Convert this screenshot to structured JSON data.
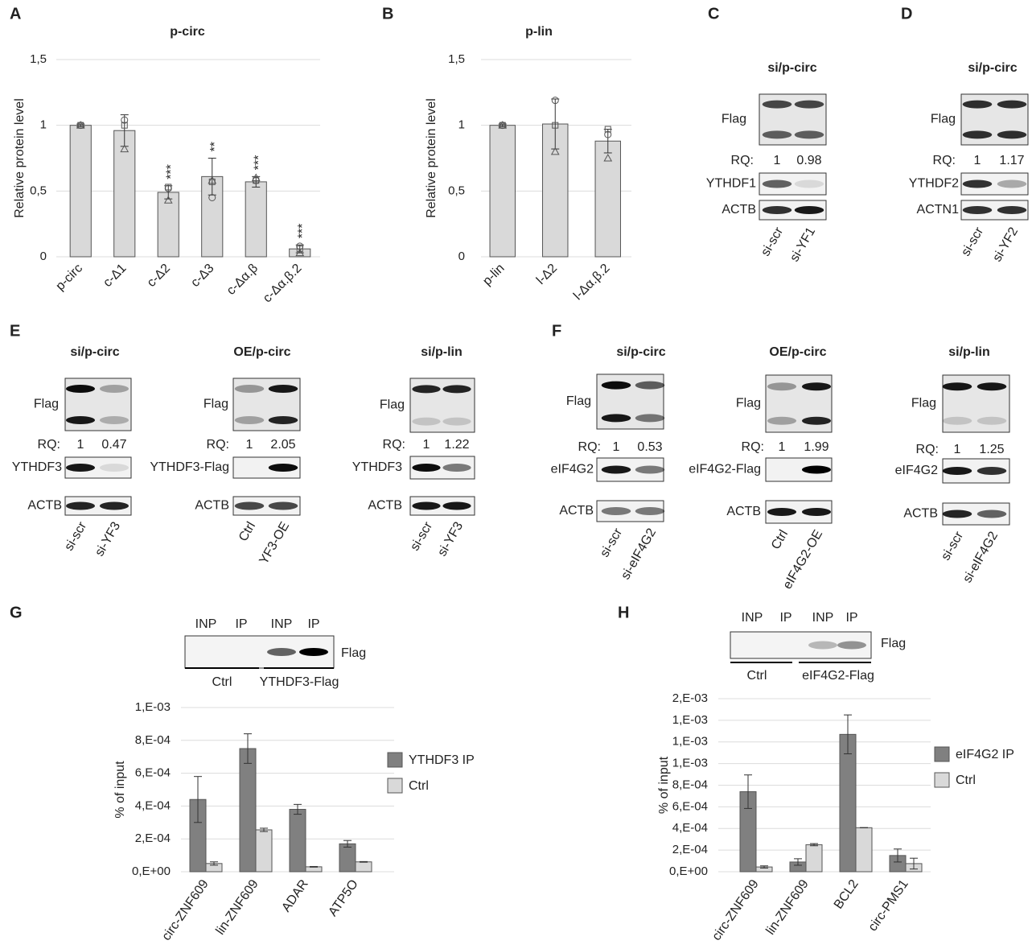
{
  "panel_labels": [
    "A",
    "B",
    "C",
    "D",
    "E",
    "F",
    "G",
    "H"
  ],
  "chart_data": [
    {
      "type": "bar",
      "title": "p-circ",
      "y_label": "Relative protein level",
      "categories": [
        "p-circ",
        "c-Δ1",
        "c-Δ2",
        "c-Δ3",
        "c-Δα.β",
        "c-Δα.β.2"
      ],
      "values": [
        1,
        0.96,
        0.49,
        0.61,
        0.57,
        0.06
      ],
      "errors": [
        0.01,
        0.12,
        0.05,
        0.14,
        0.04,
        0.03
      ],
      "points": [
        [
          1,
          1,
          1
        ],
        [
          1.04,
          1.0,
          0.82
        ],
        [
          0.52,
          0.53,
          0.43
        ],
        [
          0.45,
          0.57,
          0.58
        ],
        [
          0.58,
          0.58,
          0.6
        ],
        [
          0.08,
          0.06,
          0.03
        ]
      ],
      "significance": [
        null,
        null,
        "***",
        "**",
        "***",
        "***"
      ],
      "color": "#d9d9d9",
      "ylim": [
        0,
        1.5
      ],
      "yticks": [
        0,
        {
          "value": 0.5,
          "label": "0,5"
        },
        1,
        {
          "value": 1.5,
          "label": "1,5"
        }
      ],
      "grid": true
    },
    {
      "type": "bar",
      "title": "p-lin",
      "y_label": "Relative protein level",
      "categories": [
        "p-lin",
        "l-Δ2",
        "l-Δα.β.2"
      ],
      "values": [
        1,
        1.01,
        0.88
      ],
      "errors": [
        0.01,
        0.19,
        0.09
      ],
      "points": [
        [
          1,
          1,
          1
        ],
        [
          1.19,
          1.0,
          0.8
        ],
        [
          0.93,
          0.97,
          0.75
        ]
      ],
      "color": "#d9d9d9",
      "ylim": [
        0,
        1.5
      ],
      "yticks": [
        0,
        {
          "value": 0.5,
          "label": "0,5"
        },
        1,
        {
          "value": 1.5,
          "label": "1,5"
        }
      ],
      "grid": true
    },
    {
      "type": "grouped_bar",
      "y_label": "% of input",
      "categories": [
        "circ-ZNF609",
        "lin-ZNF609",
        "ADAR",
        "ATP5O"
      ],
      "series": [
        {
          "name": "YTHDF3 IP",
          "color": "#808080",
          "values": [
            0.00044,
            0.00075,
            0.00038,
            0.00017
          ],
          "errors": [
            0.00014,
            9e-05,
            3e-05,
            2e-05
          ]
        },
        {
          "name": "Ctrl",
          "color": "#d9d9d9",
          "values": [
            5e-05,
            0.000255,
            3e-05,
            6e-05
          ],
          "errors": [
            1e-05,
            1e-05,
            2e-06,
            2e-06
          ]
        }
      ],
      "ylim": [
        0,
        0.001
      ],
      "yticks": [
        {
          "value": 0,
          "label": "0,E+00"
        },
        {
          "value": 0.0002,
          "label": "2,E-04"
        },
        {
          "value": 0.0004,
          "label": "4,E-04"
        },
        {
          "value": 0.0006,
          "label": "6,E-04"
        },
        {
          "value": 0.0008,
          "label": "8,E-04"
        },
        {
          "value": 0.001,
          "label": "1,E-03"
        }
      ],
      "grid": true,
      "legend": "right"
    },
    {
      "type": "grouped_bar",
      "y_label": "% of input",
      "categories": [
        "circ-ZNF609",
        "lin-ZNF609",
        "BCL2",
        "circ-PMS1"
      ],
      "series": [
        {
          "name": "eIF4G2 IP",
          "color": "#808080",
          "values": [
            0.00074,
            9e-05,
            0.00127,
            0.00015
          ],
          "errors": [
            0.000155,
            3e-05,
            0.00018,
            6e-05
          ]
        },
        {
          "name": "Ctrl",
          "color": "#d9d9d9",
          "values": [
            4.4e-05,
            0.00025,
            0.000407,
            7.5e-05
          ],
          "errors": [
            1e-05,
            1e-05,
            1e-06,
            5e-05
          ]
        }
      ],
      "ylim": [
        0,
        0.0016
      ],
      "yticks": [
        {
          "value": 0,
          "label": "0,E+00"
        },
        {
          "value": 0.0002,
          "label": "2,E-04"
        },
        {
          "value": 0.0004,
          "label": "4,E-04"
        },
        {
          "value": 0.0006,
          "label": "6,E-04"
        },
        {
          "value": 0.0008,
          "label": "8,E-04"
        },
        {
          "value": 0.001,
          "label": "1,E-03"
        },
        {
          "value": 0.0012,
          "label": "1,E-03"
        },
        {
          "value": 0.0014,
          "label": "1,E-03"
        },
        {
          "value": 0.0016,
          "label": "2,E-03"
        }
      ],
      "grid": true,
      "legend": "right"
    }
  ],
  "western_blots": [
    {
      "title": "si/p-circ",
      "rows": [
        "Flag",
        "YTHDF1",
        "ACTB"
      ],
      "rq_label": "RQ:",
      "rq": [
        1,
        0.98
      ],
      "lanes": [
        "si-scr",
        "si-YF1"
      ]
    },
    {
      "title": "si/p-circ",
      "rows": [
        "Flag",
        "YTHDF2",
        "ACTN1"
      ],
      "rq_label": "RQ:",
      "rq": [
        1,
        1.17
      ],
      "lanes": [
        "si-scr",
        "si-YF2"
      ]
    },
    {
      "title": "si/p-circ",
      "rows": [
        "Flag",
        "YTHDF3",
        "ACTB"
      ],
      "rq_label": "RQ:",
      "rq": [
        1,
        0.47
      ],
      "lanes": [
        "si-scr",
        "si-YF3"
      ]
    },
    {
      "title": "OE/p-circ",
      "rows": [
        "Flag",
        "YTHDF3-Flag",
        "ACTB"
      ],
      "rq_label": "RQ:",
      "rq": [
        1,
        2.05
      ],
      "lanes": [
        "Ctrl",
        "YF3-OE"
      ]
    },
    {
      "title": "si/p-lin",
      "rows": [
        "Flag",
        "YTHDF3",
        "ACTB"
      ],
      "rq_label": "RQ:",
      "rq": [
        1,
        1.22
      ],
      "lanes": [
        "si-scr",
        "si-YF3"
      ]
    },
    {
      "title": "si/p-circ",
      "rows": [
        "Flag",
        "eIF4G2",
        "ACTB"
      ],
      "rq_label": "RQ:",
      "rq": [
        1,
        0.53
      ],
      "lanes": [
        "si-scr",
        "si-eIF4G2"
      ]
    },
    {
      "title": "OE/p-circ",
      "rows": [
        "Flag",
        "eIF4G2-Flag",
        "ACTB"
      ],
      "rq_label": "RQ:",
      "rq": [
        1,
        1.99
      ],
      "lanes": [
        "Ctrl",
        "eIF4G2-OE"
      ]
    },
    {
      "title": "si/p-lin",
      "rows": [
        "Flag",
        "eIF4G2",
        "ACTB"
      ],
      "rq_label": "RQ:",
      "rq": [
        1,
        1.25
      ],
      "lanes": [
        "si-scr",
        "si-eIF4G2"
      ]
    }
  ],
  "ip_blots": [
    {
      "lanes": [
        "INP",
        "IP",
        "INP",
        "IP"
      ],
      "row": "Flag",
      "groups": [
        "Ctrl",
        "YTHDF3-Flag"
      ]
    },
    {
      "lanes": [
        "INP",
        "IP",
        "INP",
        "IP"
      ],
      "row": "Flag",
      "groups": [
        "Ctrl",
        "eIF4G2-Flag"
      ]
    }
  ]
}
